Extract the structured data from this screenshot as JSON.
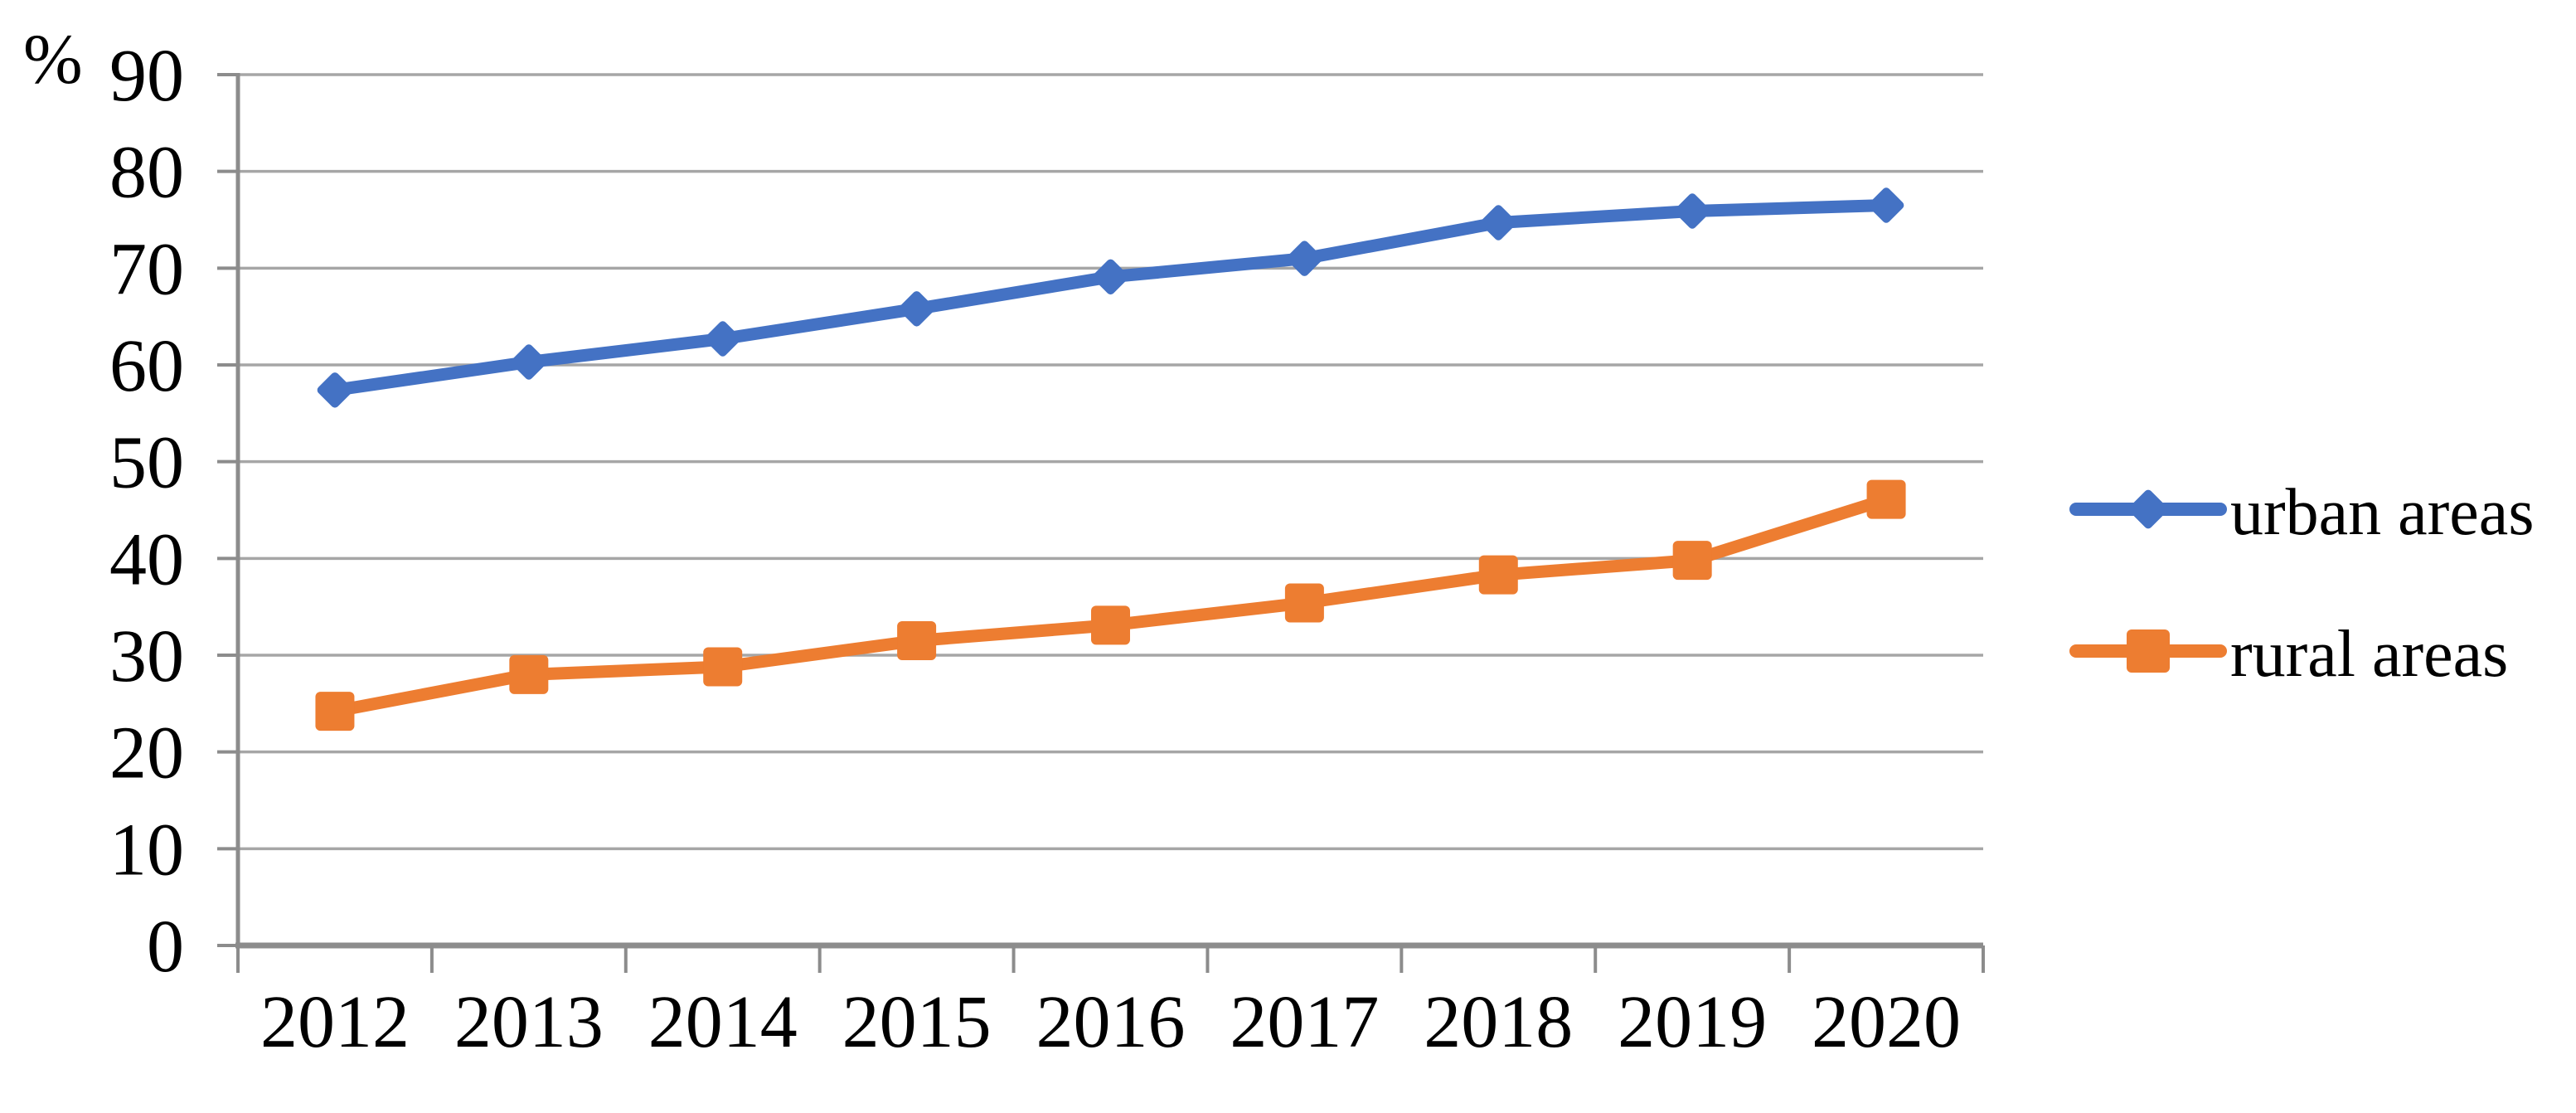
{
  "chart_data": {
    "type": "line",
    "title": "",
    "unit_label": "%",
    "categories": [
      "2012",
      "2013",
      "2014",
      "2015",
      "2016",
      "2017",
      "2018",
      "2019",
      "2020"
    ],
    "series": [
      {
        "name": "urban areas",
        "color": "#4472C4",
        "marker": "diamond",
        "values": [
          57.4,
          60.3,
          62.7,
          65.8,
          69.1,
          71.0,
          74.7,
          75.9,
          76.5
        ]
      },
      {
        "name": "rural areas",
        "color": "#ED7D31",
        "marker": "square",
        "values": [
          24.2,
          28.0,
          28.8,
          31.5,
          33.1,
          35.4,
          38.3,
          39.8,
          46.1
        ]
      }
    ],
    "ylabel": "",
    "xlabel": "",
    "ylim": [
      0,
      90
    ],
    "y_tick_step": 10,
    "y_tick_labels": [
      "90",
      "80",
      "70",
      "60",
      "50",
      "40",
      "30",
      "20",
      "10",
      "0"
    ],
    "grid": true,
    "legend_position": "right",
    "gridline_color": "#A6A6A6",
    "axis_color": "#8C8C8C",
    "text_color": "#000000",
    "background_color": "#FFFFFF"
  }
}
